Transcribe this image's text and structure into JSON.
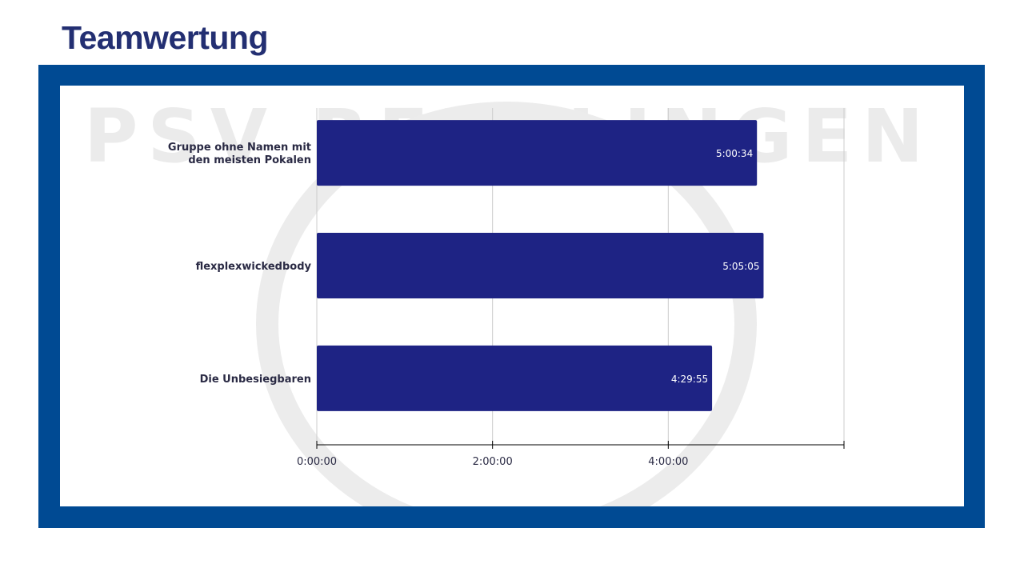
{
  "page": {
    "title": "Teamwertung",
    "watermark": "PSV REUTLINGEN"
  },
  "colors": {
    "frame": "#004a93",
    "bar": "#1e2384",
    "title": "#232f72"
  },
  "chart_data": {
    "type": "bar",
    "orientation": "horizontal",
    "categories": [
      [
        "Gruppe ohne Namen mit",
        "den meisten Pokalen"
      ],
      [
        "flexplexwickedbody"
      ],
      [
        "Die Unbesiegbaren"
      ]
    ],
    "values": [
      "5:00:34",
      "5:05:05",
      "4:29:55"
    ],
    "xlim": [
      "0:00:00",
      "6:00:00"
    ],
    "xticks": [
      "0:00:00",
      "2:00:00",
      "4:00:00"
    ],
    "grid": true,
    "title": "",
    "xlabel": "",
    "ylabel": ""
  }
}
